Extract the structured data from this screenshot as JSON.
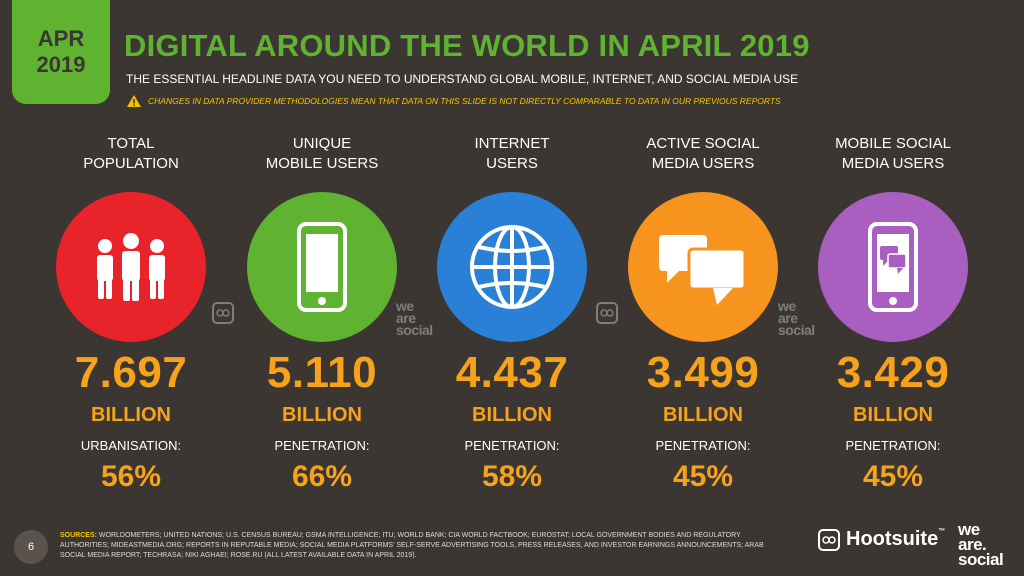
{
  "header": {
    "date_month": "APR",
    "date_year": "2019",
    "title": "DIGITAL AROUND THE WORLD IN APRIL 2019",
    "subtitle": "THE ESSENTIAL HEADLINE DATA YOU NEED TO UNDERSTAND GLOBAL MOBILE, INTERNET, AND SOCIAL MEDIA USE",
    "warning": "CHANGES IN DATA PROVIDER METHODOLOGIES MEAN THAT DATA ON THIS SLIDE IS NOT DIRECTLY COMPARABLE TO DATA IN OUR PREVIOUS REPORTS"
  },
  "stats": [
    {
      "label": "TOTAL\nPOPULATION",
      "icon": "people-icon",
      "color": "#e8232a",
      "value": "7.697",
      "unit": "BILLION",
      "sub_label": "URBANISATION:",
      "sub_value": "56%"
    },
    {
      "label": "UNIQUE\nMOBILE USERS",
      "icon": "mobile-phone-icon",
      "color": "#5fb330",
      "value": "5.110",
      "unit": "BILLION",
      "sub_label": "PENETRATION:",
      "sub_value": "66%"
    },
    {
      "label": "INTERNET\nUSERS",
      "icon": "globe-icon",
      "color": "#2a7fd6",
      "value": "4.437",
      "unit": "BILLION",
      "sub_label": "PENETRATION:",
      "sub_value": "58%"
    },
    {
      "label": "ACTIVE SOCIAL\nMEDIA USERS",
      "icon": "chat-bubbles-icon",
      "color": "#f7941d",
      "value": "3.499",
      "unit": "BILLION",
      "sub_label": "PENETRATION:",
      "sub_value": "45%"
    },
    {
      "label": "MOBILE SOCIAL\nMEDIA USERS",
      "icon": "mobile-chat-icon",
      "color": "#a95fc0",
      "value": "3.429",
      "unit": "BILLION",
      "sub_label": "PENETRATION:",
      "sub_value": "45%"
    }
  ],
  "watermark": {
    "line1": "we",
    "line2": "are",
    "line3": "social"
  },
  "footer": {
    "page_number": "6",
    "sources_lead": "SOURCES:",
    "sources_text": "WORLDOMETERS; UNITED NATIONS; U.S. CENSUS BUREAU; GSMA INTELLIGENCE; ITU; WORLD BANK; CIA WORLD FACTBOOK; EUROSTAT; LOCAL GOVERNMENT BODIES AND REGULATORY AUTHORITIES; MIDEASTMEDIA.ORG; REPORTS IN REPUTABLE MEDIA; SOCIAL MEDIA PLATFORMS' SELF-SERVE ADVERTISING TOOLS, PRESS RELEASES, AND INVESTOR EARNINGS ANNOUNCEMENTS; ARAB SOCIAL MEDIA REPORT; TECHRASA; NIKI AGHAEI; ROSE.RU (ALL LATEST AVAILABLE DATA IN APRIL 2019).",
    "hootsuite": "Hootsuite",
    "hootsuite_tm": "™",
    "was_line1": "we",
    "was_line2": "are.",
    "was_line3": "social"
  }
}
